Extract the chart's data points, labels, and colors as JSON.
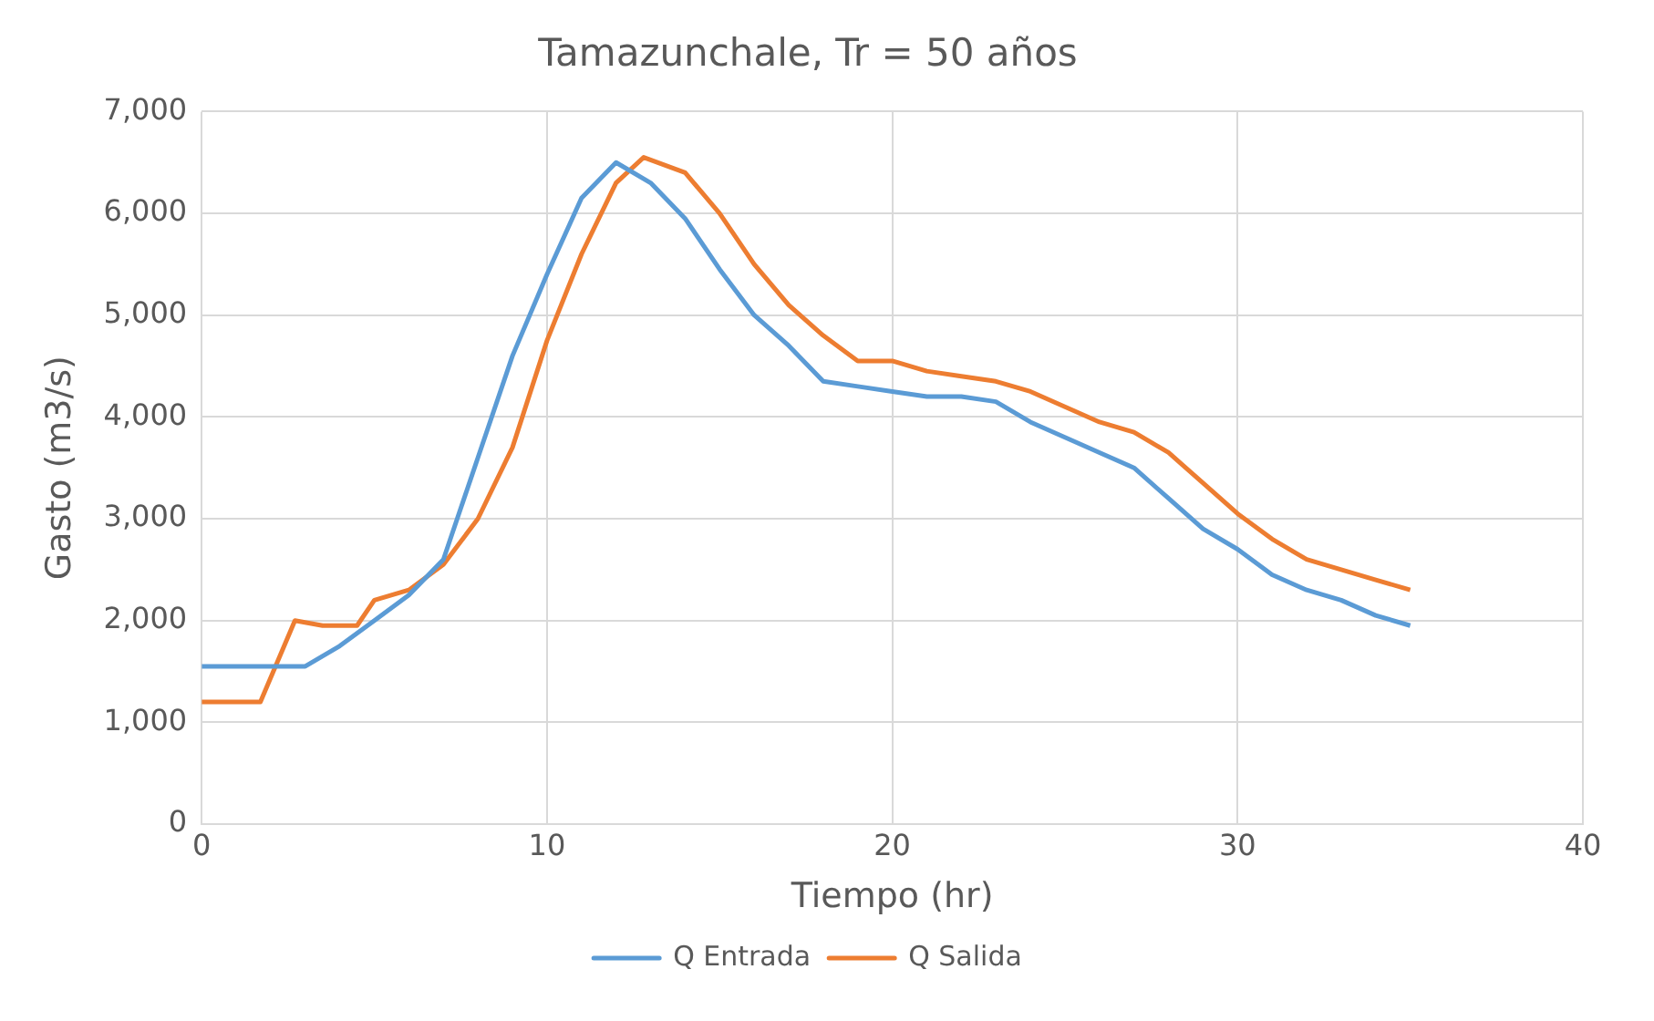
{
  "chart_data": {
    "type": "line",
    "title": "Tamazunchale, Tr = 50 años",
    "xlabel": "Tiempo (hr)",
    "ylabel": "Gasto (m3/s)",
    "xlim": [
      0,
      40
    ],
    "xticks": [
      0,
      10,
      20,
      30,
      40
    ],
    "ylim": [
      0,
      7000
    ],
    "yticks": [
      {
        "value": 0,
        "label": "0"
      },
      {
        "value": 1000,
        "label": "1,000"
      },
      {
        "value": 2000,
        "label": "2,000"
      },
      {
        "value": 3000,
        "label": "3,000"
      },
      {
        "value": 4000,
        "label": "4,000"
      },
      {
        "value": 5000,
        "label": "5,000"
      },
      {
        "value": 6000,
        "label": "6,000"
      },
      {
        "value": 7000,
        "label": "7,000"
      }
    ],
    "grid": true,
    "legend": "bottom",
    "marker": "none",
    "line_style": "solid",
    "series": [
      {
        "name": "Q Entrada",
        "color": "#5b9bd5",
        "x": [
          0,
          1,
          2,
          3,
          4,
          5,
          6,
          7,
          8,
          9,
          10,
          11,
          12,
          13,
          14,
          15,
          16,
          17,
          18,
          19,
          20,
          21,
          22,
          23,
          24,
          25,
          26,
          27,
          28,
          29,
          30,
          31,
          32,
          33,
          34,
          35
        ],
        "values": [
          1550,
          1550,
          1550,
          1550,
          1750,
          2000,
          2250,
          2600,
          3600,
          4600,
          5400,
          6150,
          6500,
          6300,
          5950,
          5450,
          5000,
          4700,
          4350,
          4300,
          4250,
          4200,
          4200,
          4150,
          3950,
          3800,
          3650,
          3500,
          3200,
          2900,
          2700,
          2450,
          2300,
          2200,
          2050,
          1950
        ]
      },
      {
        "name": "Q Salida",
        "color": "#ed7d31",
        "x": [
          0,
          1,
          1.7,
          2.7,
          3.5,
          4.5,
          5,
          6,
          7,
          8,
          9,
          10,
          11,
          12,
          12.8,
          14,
          15,
          16,
          17,
          18,
          19,
          20,
          21,
          22,
          23,
          24,
          25,
          26,
          27,
          28,
          29,
          30,
          31,
          32,
          33,
          34,
          35
        ],
        "values": [
          1200,
          1200,
          1200,
          2000,
          1950,
          1950,
          2200,
          2300,
          2550,
          3000,
          3700,
          4750,
          5600,
          6300,
          6550,
          6400,
          6000,
          5500,
          5100,
          4800,
          4550,
          4550,
          4450,
          4400,
          4350,
          4250,
          4100,
          3950,
          3850,
          3650,
          3350,
          3050,
          2800,
          2600,
          2500,
          2400,
          2300
        ]
      }
    ]
  }
}
